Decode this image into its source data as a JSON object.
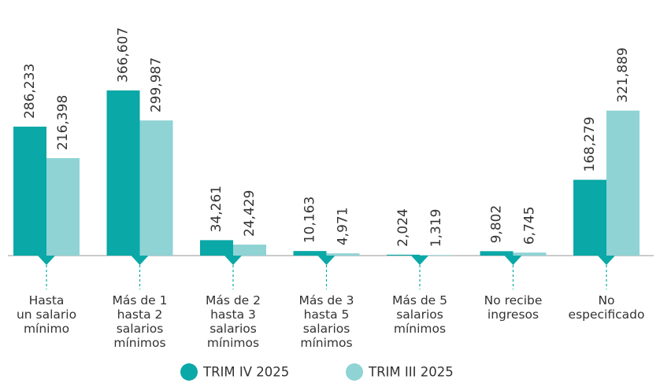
{
  "chart_data": {
    "type": "bar",
    "categories": [
      [
        "Hasta",
        "un salario",
        "mínimo"
      ],
      [
        "Más de 1",
        "hasta 2",
        "salarios",
        "mínimos"
      ],
      [
        "Más de 2",
        "hasta 3",
        "salarios",
        "mínimos"
      ],
      [
        "Más de 3",
        "hasta 5",
        "salarios",
        "mínimos"
      ],
      [
        "Más de 5",
        "salarios",
        "mínimos"
      ],
      [
        "No recibe",
        "ingresos"
      ],
      [
        "No",
        "especificado"
      ]
    ],
    "series": [
      {
        "name": "TRIM IV 2025",
        "color": "#0aa8a7",
        "values": [
          286233,
          366607,
          34261,
          10163,
          2024,
          9802,
          168279
        ],
        "value_labels": [
          "286,233",
          "366,607",
          "34,261",
          "10,163",
          "2,024",
          "9,802",
          "168,279"
        ]
      },
      {
        "name": "TRIM III 2025",
        "color": "#8fd3d5",
        "values": [
          216398,
          299987,
          24429,
          4971,
          1319,
          6745,
          321889
        ],
        "value_labels": [
          "216,398",
          "299,987",
          "24,429",
          "4,971",
          "1,319",
          "6,745",
          "321,889"
        ]
      }
    ]
  }
}
